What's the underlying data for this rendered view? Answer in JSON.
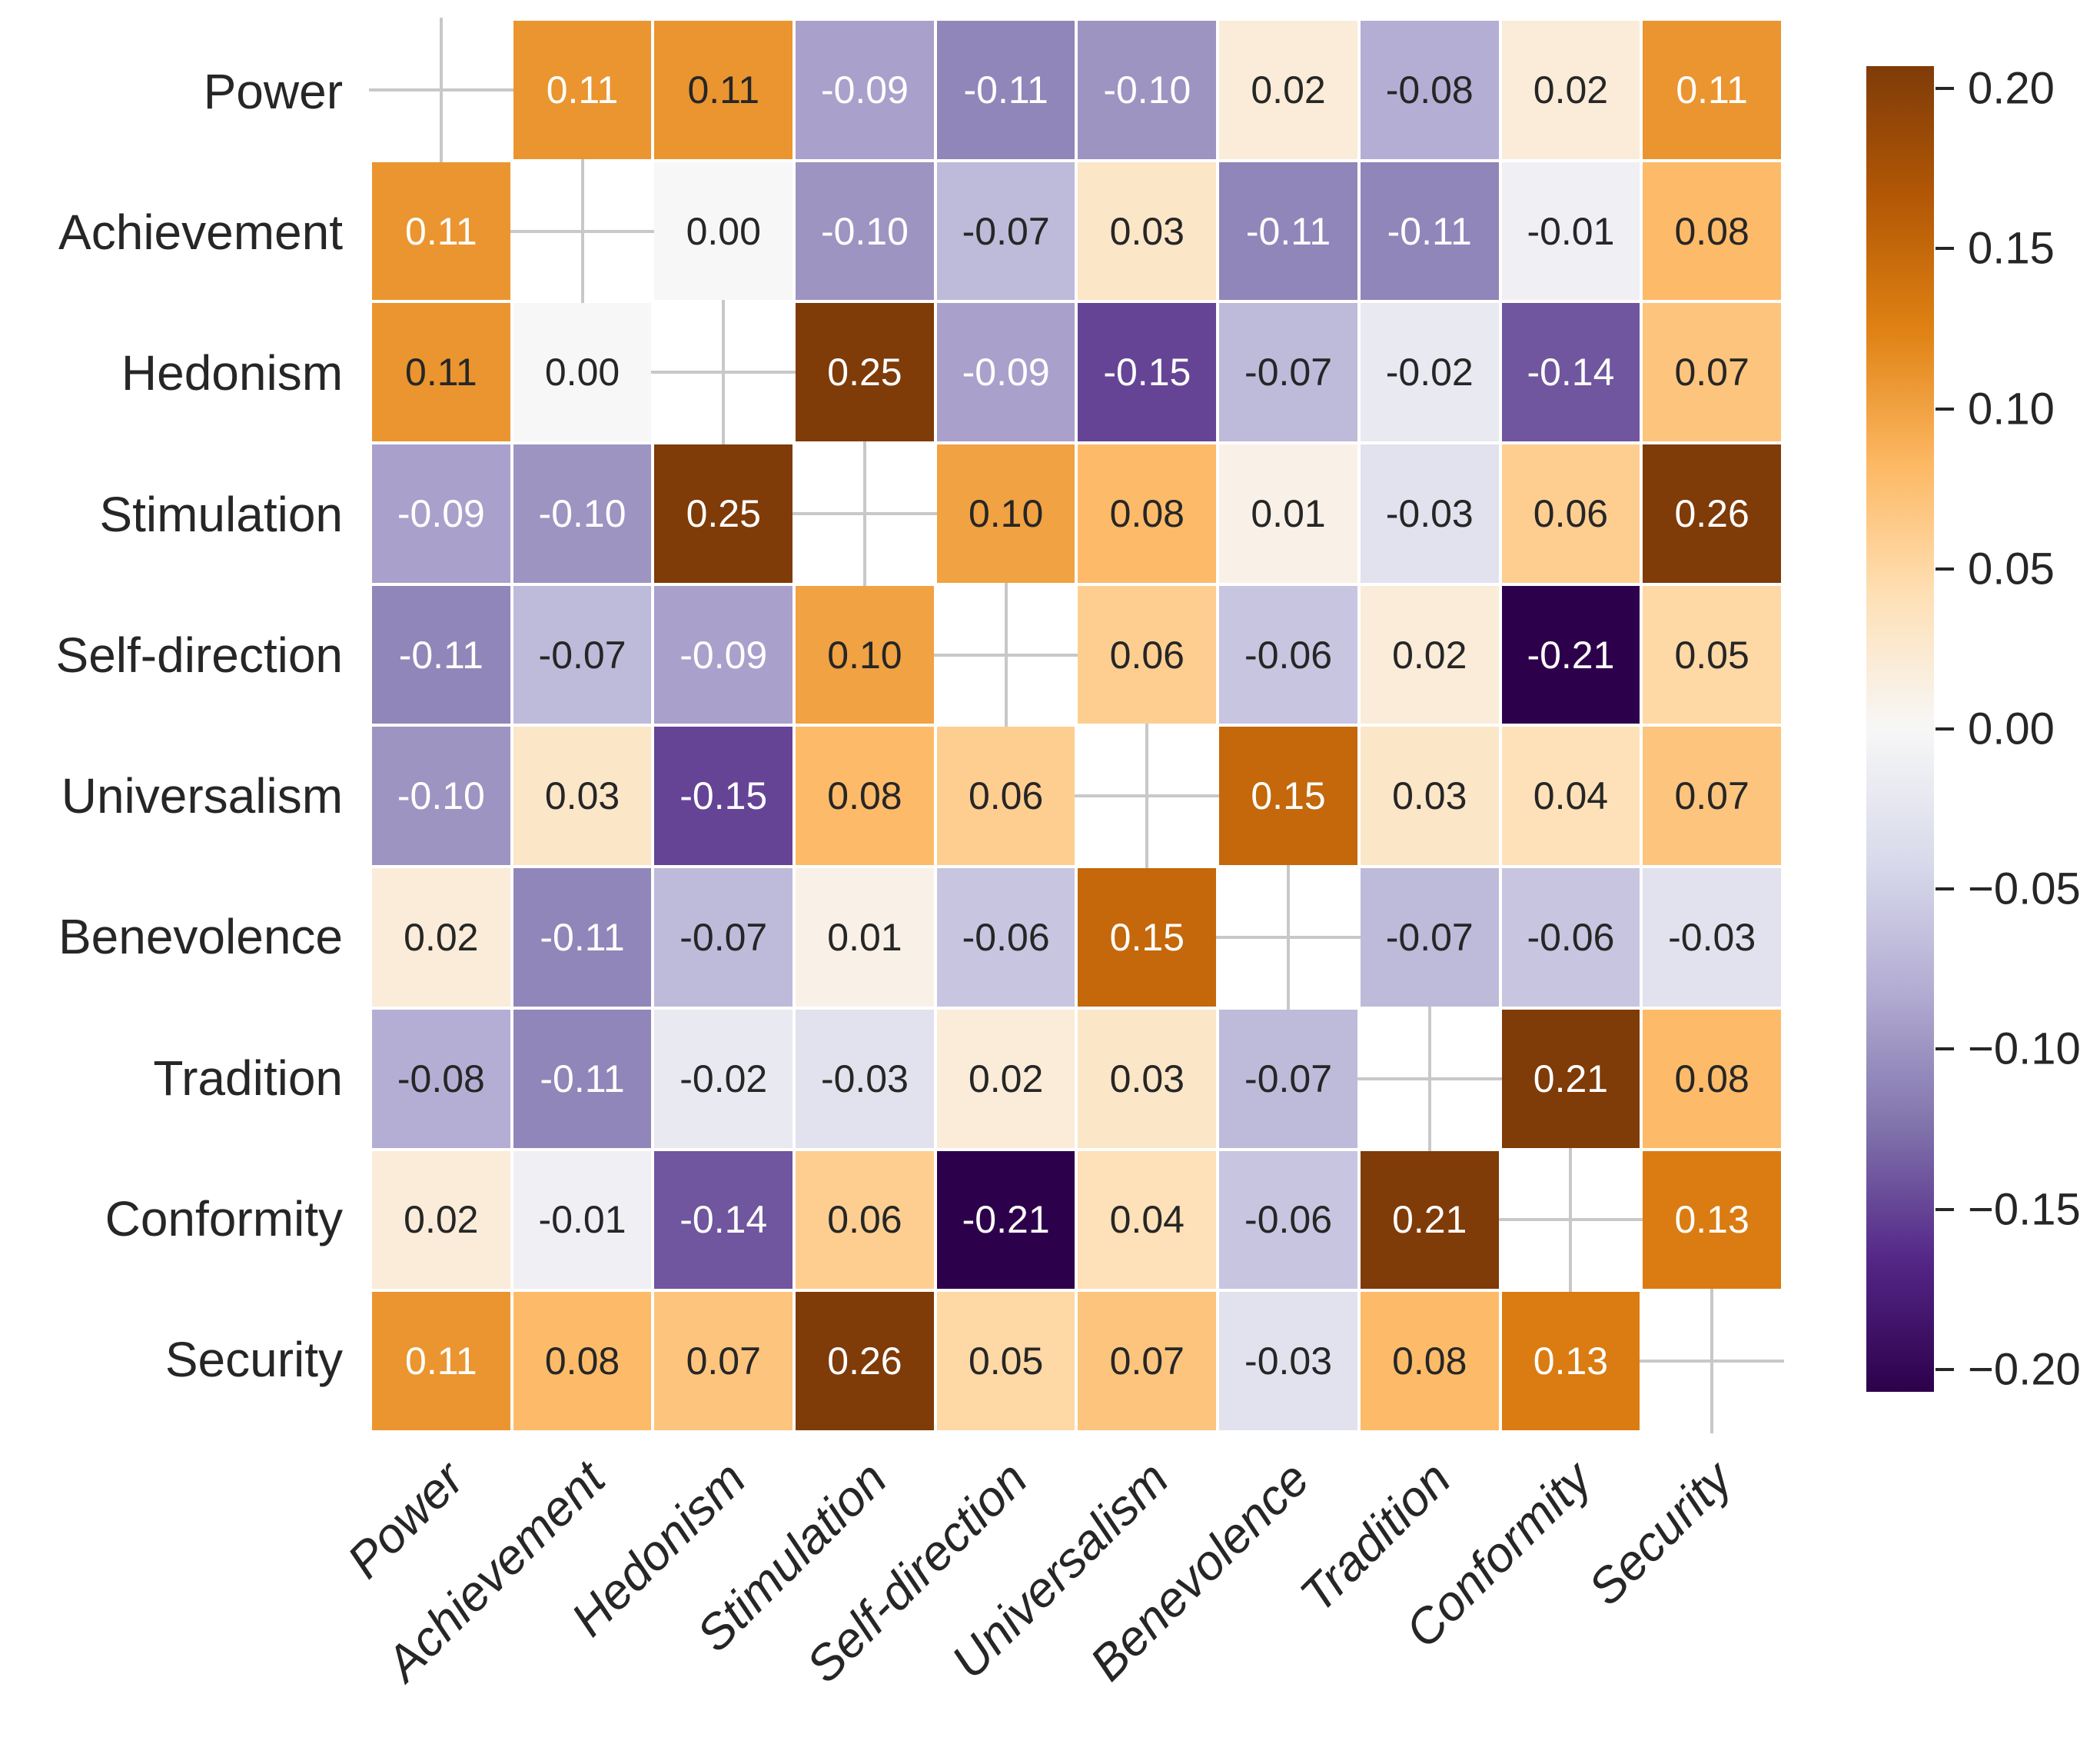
{
  "page": {
    "background": "#ffffff"
  },
  "chart_data": {
    "type": "heatmap",
    "title": "",
    "xlabel": "",
    "ylabel": "",
    "categories": [
      "Power",
      "Achievement",
      "Hedonism",
      "Stimulation",
      "Self-direction",
      "Universalism",
      "Benevolence",
      "Tradition",
      "Conformity",
      "Security"
    ],
    "matrix": [
      [
        null,
        0.11,
        0.11,
        -0.09,
        -0.11,
        -0.1,
        0.02,
        -0.08,
        0.02,
        0.11
      ],
      [
        0.11,
        null,
        0.0,
        -0.1,
        -0.07,
        0.03,
        -0.11,
        -0.11,
        -0.01,
        0.08
      ],
      [
        0.11,
        0.0,
        null,
        0.25,
        -0.09,
        -0.15,
        -0.07,
        -0.02,
        -0.14,
        0.07
      ],
      [
        -0.09,
        -0.1,
        0.25,
        null,
        0.1,
        0.08,
        0.01,
        -0.03,
        0.06,
        0.26
      ],
      [
        -0.11,
        -0.07,
        -0.09,
        0.1,
        null,
        0.06,
        -0.06,
        0.02,
        -0.21,
        0.05
      ],
      [
        -0.1,
        0.03,
        -0.15,
        0.08,
        0.06,
        null,
        0.15,
        0.03,
        0.04,
        0.07
      ],
      [
        0.02,
        -0.11,
        -0.07,
        0.01,
        -0.06,
        0.15,
        null,
        -0.07,
        -0.06,
        -0.03
      ],
      [
        -0.08,
        -0.11,
        -0.02,
        -0.03,
        0.02,
        0.03,
        -0.07,
        null,
        0.21,
        0.08
      ],
      [
        0.02,
        -0.01,
        -0.14,
        0.06,
        -0.21,
        0.04,
        -0.06,
        0.21,
        null,
        0.13
      ],
      [
        0.11,
        0.08,
        0.07,
        0.26,
        0.05,
        0.07,
        -0.03,
        0.08,
        0.13,
        null
      ]
    ],
    "annot": [
      [
        "",
        "0.11",
        "0.11",
        "-0.09",
        "-0.11",
        "-0.10",
        "0.02",
        "-0.08",
        "0.02",
        "0.11"
      ],
      [
        "0.11",
        "",
        "0.00",
        "-0.10",
        "-0.07",
        "0.03",
        "-0.11",
        "-0.11",
        "-0.01",
        "0.08"
      ],
      [
        "0.11",
        "0.00",
        "",
        "0.25",
        "-0.09",
        "-0.15",
        "-0.07",
        "-0.02",
        "-0.14",
        "0.07"
      ],
      [
        "-0.09",
        "-0.10",
        "0.25",
        "",
        "0.10",
        "0.08",
        "0.01",
        "-0.03",
        "0.06",
        "0.26"
      ],
      [
        "-0.11",
        "-0.07",
        "-0.09",
        "0.10",
        "",
        "0.06",
        "-0.06",
        "0.02",
        "-0.21",
        "0.05"
      ],
      [
        "-0.10",
        "0.03",
        "-0.15",
        "0.08",
        "0.06",
        "",
        "0.15",
        "0.03",
        "0.04",
        "0.07"
      ],
      [
        "0.02",
        "-0.11",
        "-0.07",
        "0.01",
        "-0.06",
        "0.15",
        "",
        "-0.07",
        "-0.06",
        "-0.03"
      ],
      [
        "-0.08",
        "-0.11",
        "-0.02",
        "-0.03",
        "0.02",
        "0.03",
        "-0.07",
        "",
        "0.21",
        "0.08"
      ],
      [
        "0.02",
        "-0.01",
        "-0.14",
        "0.06",
        "-0.21",
        "0.04",
        "-0.06",
        "0.21",
        "",
        "0.13"
      ],
      [
        "0.11",
        "0.08",
        "0.07",
        "0.26",
        "0.05",
        "0.07",
        "-0.03",
        "0.08",
        "0.13",
        ""
      ]
    ],
    "text_colors": [
      [
        null,
        "w",
        "b",
        "w",
        "w",
        "w",
        "b",
        "b",
        "b",
        "w"
      ],
      [
        "w",
        null,
        "b",
        "w",
        "b",
        "b",
        "w",
        "w",
        "b",
        "b"
      ],
      [
        "b",
        "b",
        null,
        "w",
        "w",
        "w",
        "b",
        "b",
        "w",
        "b"
      ],
      [
        "w",
        "w",
        "w",
        null,
        "b",
        "b",
        "b",
        "b",
        "b",
        "w"
      ],
      [
        "w",
        "b",
        "w",
        "b",
        null,
        "b",
        "b",
        "b",
        "w",
        "b"
      ],
      [
        "w",
        "b",
        "w",
        "b",
        "b",
        null,
        "w",
        "b",
        "b",
        "b"
      ],
      [
        "b",
        "w",
        "b",
        "b",
        "b",
        "w",
        null,
        "b",
        "b",
        "b"
      ],
      [
        "b",
        "w",
        "b",
        "b",
        "b",
        "b",
        "b",
        null,
        "w",
        "b"
      ],
      [
        "b",
        "b",
        "w",
        "b",
        "w",
        "b",
        "b",
        "w",
        null,
        "w"
      ],
      [
        "w",
        "b",
        "b",
        "w",
        "b",
        "b",
        "b",
        "b",
        "w",
        null
      ]
    ],
    "colormap": {
      "name": "PuOr_r",
      "anchors_low_to_high": [
        "#2d004b",
        "#542788",
        "#8073ac",
        "#b2abd2",
        "#d8daeb",
        "#f7f7f7",
        "#fee0b6",
        "#fdb863",
        "#e08214",
        "#b35806",
        "#7f3b08"
      ],
      "vmin": -0.207,
      "vmax": 0.207
    },
    "colorbar": {
      "tick_labels": [
        "0.20",
        "0.15",
        "0.10",
        "0.05",
        "0.00",
        "−0.05",
        "−0.10",
        "−0.15",
        "−0.20"
      ],
      "tick_values": [
        0.2,
        0.15,
        0.1,
        0.05,
        0.0,
        -0.05,
        -0.1,
        -0.15,
        -0.2
      ]
    },
    "style_colors": {
      "annotation_text_light": "#ffffff",
      "annotation_text_dark": "#262626",
      "axis_label_color": "#262626",
      "tick_label_color": "#262626",
      "tick_mark_color": "#262626",
      "grid_cross_color": "#c8c8c8",
      "cell_border_color": "#ffffff"
    },
    "layout": {
      "grid_on_diagonal": true,
      "legend_position": "right-colorbar",
      "x_tick_rotation_deg": 45
    }
  }
}
